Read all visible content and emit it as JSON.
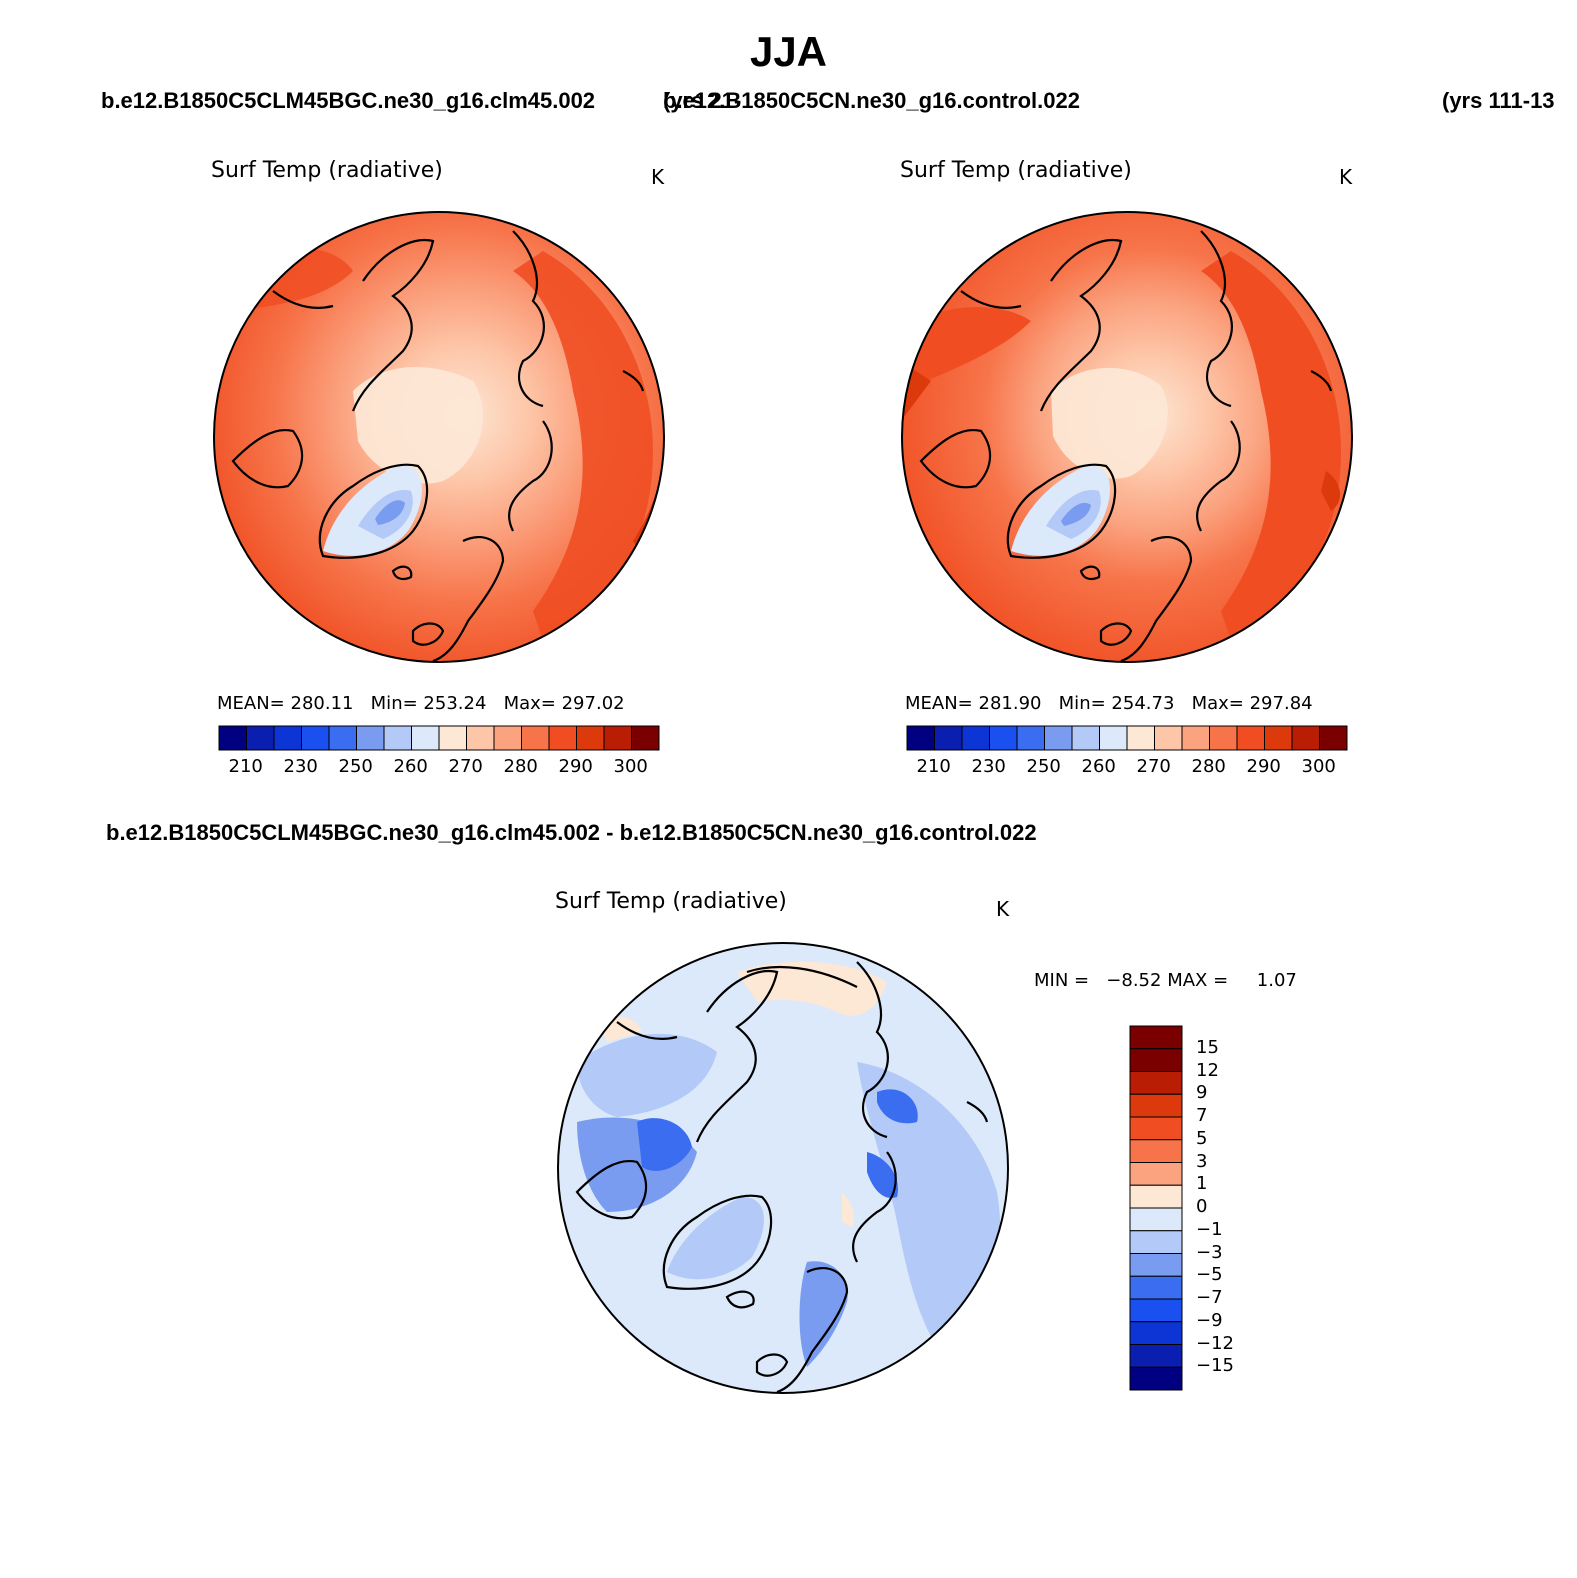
{
  "season": "JJA",
  "case_a": {
    "label": "b.e12.B1850C5CLM45BGC.ne30_g16.clm45.002",
    "years": "(yrs 21-"
  },
  "case_b": {
    "label": "b.e12.B1850C5CN.ne30_g16.control.022",
    "years": "(yrs 111-13"
  },
  "diff_label": "b.e12.B1850C5CLM45BGC.ne30_g16.clm45.002 - b.e12.B1850C5CN.ne30_g16.control.022",
  "panels": [
    {
      "variable": "Surf Temp (radiative)",
      "units": "K",
      "stats": {
        "mean_label": "MEAN=",
        "mean": "280.11",
        "min_label": "Min=",
        "min": "253.24",
        "max_label": "Max=",
        "max": "297.02"
      }
    },
    {
      "variable": "Surf Temp (radiative)",
      "units": "K",
      "stats": {
        "mean_label": "MEAN=",
        "mean": "281.90",
        "min_label": "Min=",
        "min": "254.73",
        "max_label": "Max=",
        "max": "297.84"
      }
    },
    {
      "variable": "Surf Temp (radiative)",
      "units": "K",
      "stats": {
        "min_label": "MIN =",
        "min": "−8.52",
        "max_label": "MAX =",
        "max": "1.07"
      }
    }
  ],
  "abs_colorbar": {
    "colors": [
      "#000080",
      "#0a1fb0",
      "#0d35d6",
      "#1a4ff0",
      "#3a6df0",
      "#7a9cf0",
      "#b3c9f7",
      "#dbe9fb",
      "#fde7d5",
      "#fdc6a8",
      "#fba27f",
      "#f7744a",
      "#f04e22",
      "#dc3a0c",
      "#b91e04",
      "#7a0000"
    ],
    "ticks": [
      "210",
      "230",
      "250",
      "260",
      "270",
      "280",
      "290",
      "300"
    ]
  },
  "diff_colorbar": {
    "colors": [
      "#7a0000",
      "#b91e04",
      "#dc3a0c",
      "#f04e22",
      "#f7744a",
      "#fba27f",
      "#fde7d5",
      "#dbe9fb",
      "#b3c9f7",
      "#7a9cf0",
      "#3a6df0",
      "#1a4ff0",
      "#0d35d6",
      "#0a1fb0",
      "#000080"
    ],
    "ticks": [
      "15",
      "12",
      "9",
      "7",
      "5",
      "3",
      "1",
      "0",
      "−1",
      "−3",
      "−5",
      "−7",
      "−9",
      "−12",
      "−15"
    ]
  }
}
